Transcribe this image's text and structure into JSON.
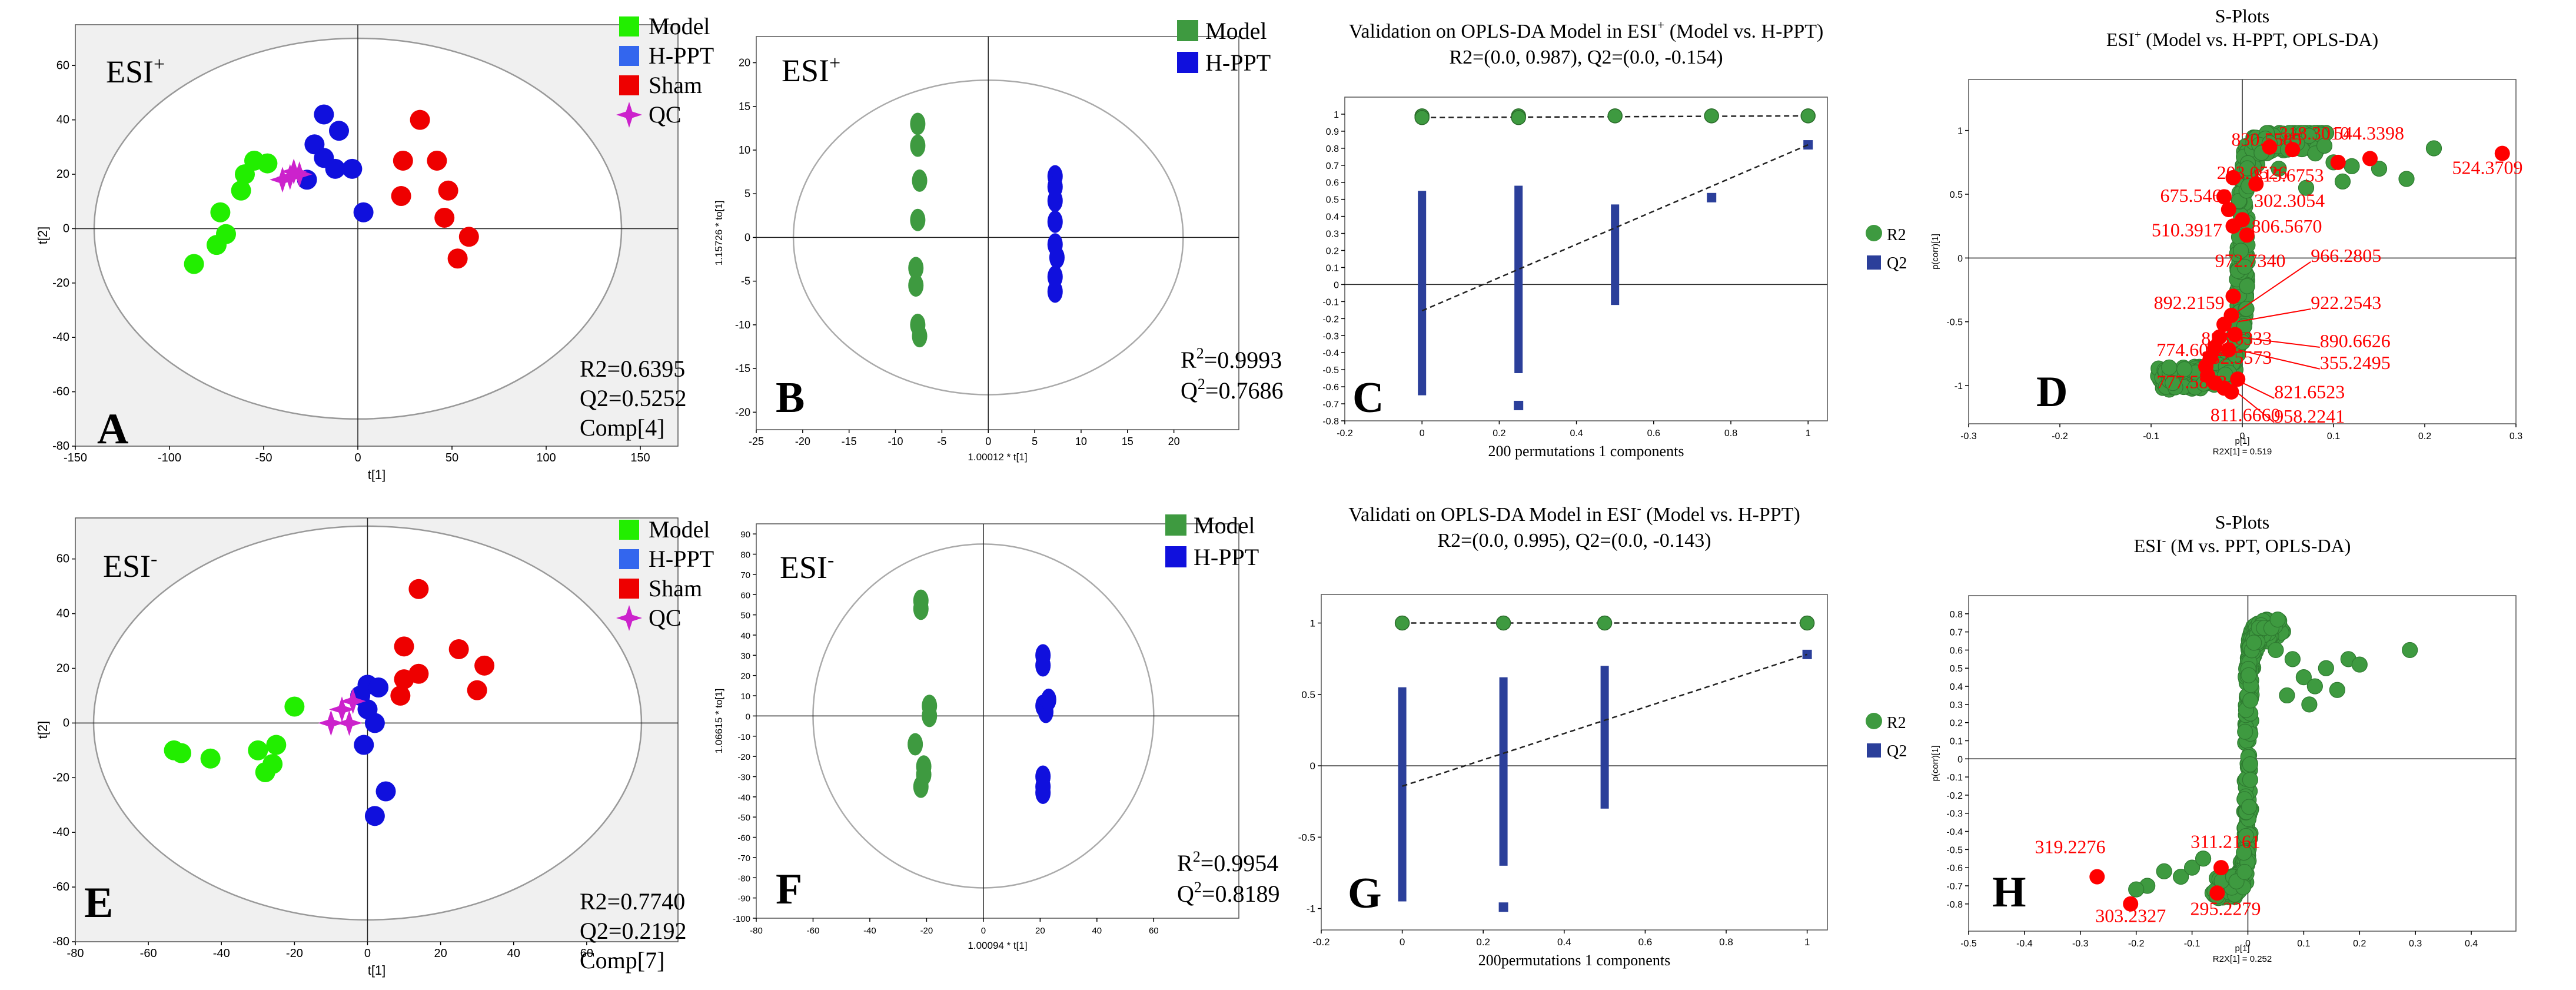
{
  "colors": {
    "model_light": "#22ee00",
    "model_green": "#3e9a40",
    "hppt_blue": "#1010dd",
    "hppt_mid": "#3366ee",
    "sham_red": "#ee0000",
    "qc_magenta": "#cc22cc",
    "sig_red": "#ff0000",
    "perm_blue": "#2b3f9a",
    "plot_bg": "#f0f0f0"
  },
  "chart_data": [
    {
      "id": "A",
      "type": "scatter",
      "tag": "ESI",
      "tag_sup": "+",
      "xlabel": "t[1]",
      "ylabel": "t[2]",
      "xlim": [
        -150,
        170
      ],
      "ylim": [
        -80,
        75
      ],
      "xticks": [
        "-150",
        "-100",
        "-50",
        "0",
        "50",
        "100",
        "150"
      ],
      "yticks": [
        "-80",
        "-60",
        "-40",
        "-20",
        "0",
        "20",
        "40",
        "60"
      ],
      "ellipse": {
        "rx": 140,
        "ry": 70
      },
      "legend": [
        "Model",
        "H-PPT",
        "Sham",
        "QC"
      ],
      "stats": [
        "R2=0.6395",
        "Q2=0.5252",
        "Comp[4]"
      ],
      "series": [
        {
          "name": "Model",
          "marker": "circle",
          "color": "model_light",
          "points": [
            [
              -87,
              -13
            ],
            [
              -75,
              -6
            ],
            [
              -70,
              -2
            ],
            [
              -73,
              6
            ],
            [
              -62,
              14
            ],
            [
              -60,
              20
            ],
            [
              -55,
              25
            ],
            [
              -48,
              24
            ]
          ]
        },
        {
          "name": "H-PPT",
          "marker": "circle",
          "color": "hppt_blue",
          "points": [
            [
              -27,
              18
            ],
            [
              -23,
              31
            ],
            [
              -18,
              42
            ],
            [
              -18,
              26
            ],
            [
              -10,
              36
            ],
            [
              -12,
              22
            ],
            [
              -3,
              22
            ],
            [
              3,
              6
            ]
          ]
        },
        {
          "name": "Sham",
          "marker": "circle",
          "color": "sham_red",
          "points": [
            [
              23,
              12
            ],
            [
              24,
              25
            ],
            [
              33,
              40
            ],
            [
              42,
              25
            ],
            [
              48,
              14
            ],
            [
              46,
              4
            ],
            [
              53,
              -11
            ],
            [
              59,
              -3
            ]
          ]
        },
        {
          "name": "QC",
          "marker": "star",
          "color": "qc_magenta",
          "points": [
            [
              -40,
              18
            ],
            [
              -36,
              19
            ],
            [
              -34,
              21
            ],
            [
              -31,
              20
            ]
          ]
        }
      ]
    },
    {
      "id": "B",
      "type": "scatter",
      "tag": "ESI",
      "tag_sup": "+",
      "xlabel": "1.00012 * t[1]",
      "ylabel": "1.15726 * to[1]",
      "xlim": [
        -25,
        27
      ],
      "ylim": [
        -22,
        23
      ],
      "xticks": [
        "-25",
        "-20",
        "-15",
        "-10",
        "-5",
        "0",
        "5",
        "10",
        "15",
        "20"
      ],
      "yticks": [
        "-20",
        "-15",
        "-10",
        "-5",
        "0",
        "5",
        "10",
        "15",
        "20"
      ],
      "ellipse": {
        "rx": 21,
        "ry": 18
      },
      "legend": [
        "Model",
        "H-PPT"
      ],
      "stats_r": "R",
      "stats_r_val": "=0.9993",
      "stats_q": "Q",
      "stats_q_val": "=0.7686",
      "series": [
        {
          "name": "Model",
          "marker": "ellipse",
          "color": "model_green",
          "points": [
            [
              -7.6,
              13
            ],
            [
              -7.6,
              10.5
            ],
            [
              -7.4,
              6.5
            ],
            [
              -7.6,
              2
            ],
            [
              -7.8,
              -3.5
            ],
            [
              -7.8,
              -5.5
            ],
            [
              -7.6,
              -10
            ],
            [
              -7.4,
              -11.3
            ]
          ]
        },
        {
          "name": "H-PPT",
          "marker": "ellipse",
          "color": "hppt_blue",
          "points": [
            [
              7.2,
              7
            ],
            [
              7.2,
              5.8
            ],
            [
              7.2,
              4.2
            ],
            [
              7.2,
              1.8
            ],
            [
              7.2,
              -0.8
            ],
            [
              7.4,
              -2.3
            ],
            [
              7.2,
              -4.5
            ],
            [
              7.2,
              -6.2
            ]
          ]
        }
      ]
    },
    {
      "id": "C",
      "type": "scatter",
      "subtype": "permutation",
      "title1": "Validation on OPLS-DA Model in ESI",
      "title1_sup": "+",
      "title1_tail": " (Model vs. H-PPT)",
      "title2": "R2=(0.0, 0.987), Q2=(0.0, -0.154)",
      "xlabel": "200 permutations 1 components",
      "xlim": [
        -0.2,
        1.05
      ],
      "ylim": [
        -0.8,
        1.1
      ],
      "xticks": [
        "-0.2",
        "0",
        "0.2",
        "0.4",
        "0.6",
        "0.8",
        "1"
      ],
      "yticks": [
        "-0.8",
        "-0.7",
        "-0.6",
        "-0.5",
        "-0.4",
        "-0.3",
        "-0.2",
        "-0.1",
        "0",
        "0.1",
        "0.2",
        "0.3",
        "0.4",
        "0.5",
        "0.6",
        "0.7",
        "0.8",
        "0.9",
        "1"
      ],
      "legend": [
        "R2",
        "Q2"
      ],
      "r2_points": [
        [
          0,
          0.99
        ],
        [
          0,
          0.98
        ],
        [
          0.25,
          0.99
        ],
        [
          0.25,
          0.98
        ],
        [
          0.5,
          0.99
        ],
        [
          0.75,
          0.99
        ],
        [
          1,
          0.99
        ]
      ],
      "r2_line": [
        [
          0,
          0.98
        ],
        [
          1,
          0.99
        ]
      ],
      "q2_line": [
        [
          0,
          -0.154
        ],
        [
          1,
          0.82
        ]
      ],
      "q2_columns": [
        {
          "x": 0,
          "from": -0.65,
          "to": 0.55
        },
        {
          "x": 0.25,
          "from": -0.52,
          "to": 0.58
        },
        {
          "x": 0.5,
          "from": -0.12,
          "to": 0.47
        }
      ],
      "q2_points": [
        [
          0.25,
          -0.71
        ],
        [
          0.75,
          0.51
        ],
        [
          1,
          0.82
        ]
      ]
    },
    {
      "id": "D",
      "type": "scatter",
      "subtype": "splot",
      "title1": "S-Plots",
      "title2_pre": "ESI",
      "title2_sup": "+",
      "title2_tail": " (Model vs. H-PPT, OPLS-DA)",
      "xlabel": "p[1]",
      "xlabel2": "R2X[1] = 0.519",
      "ylabel": "p(corr)[1]",
      "xlim": [
        -0.3,
        0.3
      ],
      "ylim": [
        -1.3,
        1.4
      ],
      "xticks": [
        "-0.3",
        "-0.2",
        "-0.1",
        "0",
        "0.1",
        "0.2",
        "0.3"
      ],
      "yticks": [
        "-1",
        "-0.5",
        "0",
        "0.5",
        "1"
      ],
      "labels": [
        {
          "text": "830.5585",
          "x": -0.012,
          "y": 0.88,
          "anchor": "start"
        },
        {
          "text": "318.3010",
          "x": 0.04,
          "y": 0.93,
          "anchor": "start"
        },
        {
          "text": "544.3398",
          "x": 0.1,
          "y": 0.93,
          "anchor": "start"
        },
        {
          "text": "203.0526",
          "x": -0.028,
          "y": 0.62,
          "anchor": "start"
        },
        {
          "text": "815.6753",
          "x": 0.012,
          "y": 0.6,
          "anchor": "start"
        },
        {
          "text": "675.5469",
          "x": -0.09,
          "y": 0.44,
          "anchor": "start"
        },
        {
          "text": "302.3054",
          "x": 0.013,
          "y": 0.4,
          "anchor": "start"
        },
        {
          "text": "510.3917",
          "x": -0.022,
          "y": 0.17,
          "anchor": "end"
        },
        {
          "text": "806.5670",
          "x": 0.01,
          "y": 0.2,
          "anchor": "start"
        },
        {
          "text": "524.3709",
          "x": 0.23,
          "y": 0.66,
          "anchor": "start"
        },
        {
          "text": "972.7340",
          "x": -0.03,
          "y": -0.07,
          "anchor": "start"
        },
        {
          "text": "966.2805",
          "x": 0.075,
          "y": -0.03,
          "anchor": "start"
        },
        {
          "text": "892.2159",
          "x": -0.097,
          "y": -0.4,
          "anchor": "start"
        },
        {
          "text": "922.2543",
          "x": 0.075,
          "y": -0.4,
          "anchor": "start"
        },
        {
          "text": "883.6333",
          "x": -0.045,
          "y": -0.68,
          "anchor": "start"
        },
        {
          "text": "890.6626",
          "x": 0.085,
          "y": -0.7,
          "anchor": "start"
        },
        {
          "text": "774.6042",
          "x": -0.094,
          "y": -0.77,
          "anchor": "start"
        },
        {
          "text": "832.5573",
          "x": -0.045,
          "y": -0.83,
          "anchor": "start"
        },
        {
          "text": "355.2495",
          "x": 0.085,
          "y": -0.87,
          "anchor": "start"
        },
        {
          "text": "777.5883",
          "x": -0.094,
          "y": -1.02,
          "anchor": "start"
        },
        {
          "text": "821.6523",
          "x": 0.035,
          "y": -1.1,
          "anchor": "start"
        },
        {
          "text": "811.6660",
          "x": -0.035,
          "y": -1.28,
          "anchor": "start"
        },
        {
          "text": "958.2241",
          "x": 0.035,
          "y": -1.29,
          "anchor": "start"
        }
      ]
    },
    {
      "id": "E",
      "type": "scatter",
      "tag": "ESI",
      "tag_sup": "-",
      "xlabel": "t[1]",
      "ylabel": "t[2]",
      "xlim": [
        -80,
        85
      ],
      "ylim": [
        -80,
        75
      ],
      "xticks": [
        "-80",
        "-60",
        "-40",
        "-20",
        "0",
        "20",
        "40",
        "60"
      ],
      "yticks": [
        "-80",
        "-60",
        "-40",
        "-20",
        "0",
        "20",
        "40",
        "60"
      ],
      "ellipse": {
        "rx": 75,
        "ry": 72
      },
      "legend": [
        "Model",
        "H-PPT",
        "Sham",
        "QC"
      ],
      "stats": [
        "R2=0.7740",
        "Q2=0.2192",
        "Comp[7]"
      ],
      "series": [
        {
          "name": "Model",
          "marker": "circle",
          "color": "model_light",
          "points": [
            [
              -53,
              -10
            ],
            [
              -51,
              -11
            ],
            [
              -43,
              -13
            ],
            [
              -30,
              -10
            ],
            [
              -28,
              -18
            ],
            [
              -26,
              -15
            ],
            [
              -25,
              -8
            ],
            [
              -20,
              6
            ]
          ]
        },
        {
          "name": "H-PPT",
          "marker": "circle",
          "color": "hppt_blue",
          "points": [
            [
              0,
              14
            ],
            [
              -2,
              10
            ],
            [
              3,
              13
            ],
            [
              0,
              5
            ],
            [
              2,
              0
            ],
            [
              -1,
              -8
            ],
            [
              5,
              -25
            ],
            [
              2,
              -34
            ]
          ]
        },
        {
          "name": "Sham",
          "marker": "circle",
          "color": "sham_red",
          "points": [
            [
              14,
              49
            ],
            [
              10,
              28
            ],
            [
              25,
              27
            ],
            [
              10,
              16
            ],
            [
              14,
              18
            ],
            [
              9,
              10
            ],
            [
              32,
              21
            ],
            [
              30,
              12
            ]
          ]
        },
        {
          "name": "QC",
          "marker": "star",
          "color": "qc_magenta",
          "points": [
            [
              -10,
              0
            ],
            [
              -7,
              5
            ],
            [
              -5,
              0
            ],
            [
              -4,
              8
            ]
          ]
        }
      ]
    },
    {
      "id": "F",
      "type": "scatter",
      "tag": "ESI",
      "tag_sup": "-",
      "xlabel": "1.00094 * t[1]",
      "ylabel": "1.06615 * to[1]",
      "xlim": [
        -80,
        90
      ],
      "ylim": [
        -100,
        95
      ],
      "xticks": [
        "-80",
        "-60",
        "-40",
        "-20",
        "0",
        "20",
        "40",
        "60"
      ],
      "yticks": [
        "-100",
        "-90",
        "-80",
        "-70",
        "-60",
        "-50",
        "-40",
        "-30",
        "-20",
        "-10",
        "0",
        "10",
        "20",
        "30",
        "40",
        "50",
        "60",
        "70",
        "80",
        "90"
      ],
      "ellipse": {
        "rx": 60,
        "ry": 85
      },
      "legend": [
        "Model",
        "H-PPT"
      ],
      "stats_r": "R",
      "stats_r_val": "=0.9954",
      "stats_q": "Q",
      "stats_q_val": "=0.8189",
      "series": [
        {
          "name": "Model",
          "marker": "ellipse",
          "color": "model_green",
          "points": [
            [
              -22,
              57
            ],
            [
              -22,
              53
            ],
            [
              -19,
              5
            ],
            [
              -19,
              0
            ],
            [
              -24,
              -14
            ],
            [
              -21,
              -25
            ],
            [
              -21,
              -29
            ],
            [
              -22,
              -35
            ]
          ]
        },
        {
          "name": "H-PPT",
          "marker": "ellipse",
          "color": "hppt_blue",
          "points": [
            [
              21,
              30
            ],
            [
              21,
              25
            ],
            [
              21,
              5
            ],
            [
              22,
              2
            ],
            [
              23,
              8
            ],
            [
              21,
              -30
            ],
            [
              21,
              -35
            ],
            [
              21,
              -38
            ]
          ]
        }
      ]
    },
    {
      "id": "G",
      "type": "scatter",
      "subtype": "permutation",
      "title1": "Validati on OPLS-DA Model in ESI",
      "title1_sup": "-",
      "title1_tail": " (Model  vs. H-PPT)",
      "title2": "R2=(0.0, 0.995), Q2=(0.0, -0.143)",
      "xlabel": "200permutations 1 components",
      "xlim": [
        -0.2,
        1.05
      ],
      "ylim": [
        -1.15,
        1.2
      ],
      "xticks": [
        "-0.2",
        "0",
        "0.2",
        "0.4",
        "0.6",
        "0.8",
        "1"
      ],
      "yticks": [
        "-1",
        "-0.5",
        "0",
        "0.5",
        "1"
      ],
      "legend": [
        "R2",
        "Q2"
      ],
      "r2_points": [
        [
          0,
          1.0
        ],
        [
          0.25,
          1.0
        ],
        [
          0.5,
          1.0
        ],
        [
          1,
          1.0
        ]
      ],
      "r2_line": [
        [
          0,
          1.0
        ],
        [
          1,
          1.0
        ]
      ],
      "q2_line": [
        [
          0,
          -0.143
        ],
        [
          1,
          0.78
        ]
      ],
      "q2_columns": [
        {
          "x": 0,
          "from": -0.95,
          "to": 0.55
        },
        {
          "x": 0.25,
          "from": -0.7,
          "to": 0.62
        },
        {
          "x": 0.5,
          "from": -0.3,
          "to": 0.7
        }
      ],
      "q2_points": [
        [
          0.25,
          -0.99
        ],
        [
          1,
          0.78
        ]
      ]
    },
    {
      "id": "H",
      "type": "scatter",
      "subtype": "splot",
      "title1": "S-Plots",
      "title2_pre": "ESI",
      "title2_sup": "-",
      "title2_tail": " (M vs. PPT, OPLS-DA)",
      "xlabel": "p[1]",
      "xlabel2": "R2X[1] = 0.252",
      "ylabel": "p(corr)[1]",
      "xlim": [
        -0.5,
        0.48
      ],
      "ylim": [
        -0.95,
        0.9
      ],
      "xticks": [
        "-0.5",
        "-0.4",
        "-0.3",
        "-0.2",
        "-0.1",
        "0",
        "0.1",
        "0.2",
        "0.3",
        "0.4"
      ],
      "yticks": [
        "-0.8",
        "-0.7",
        "-0.6",
        "-0.5",
        "-0.4",
        "-0.3",
        "-0.2",
        "-0.1",
        "0",
        "0.1",
        "0.2",
        "0.3",
        "0.4",
        "0.5",
        "0.6",
        "0.7",
        "0.8"
      ],
      "labels": [
        {
          "text": "319.2276",
          "x": -0.255,
          "y": -0.52,
          "anchor": "end"
        },
        {
          "text": "311.2161",
          "x": -0.04,
          "y": -0.49,
          "anchor": "middle"
        },
        {
          "text": "303.2327",
          "x": -0.21,
          "y": -0.9,
          "anchor": "middle"
        },
        {
          "text": "295.2279",
          "x": -0.04,
          "y": -0.86,
          "anchor": "middle"
        }
      ]
    }
  ],
  "panel_letters": [
    "A",
    "B",
    "C",
    "D",
    "E",
    "F",
    "G",
    "H"
  ]
}
